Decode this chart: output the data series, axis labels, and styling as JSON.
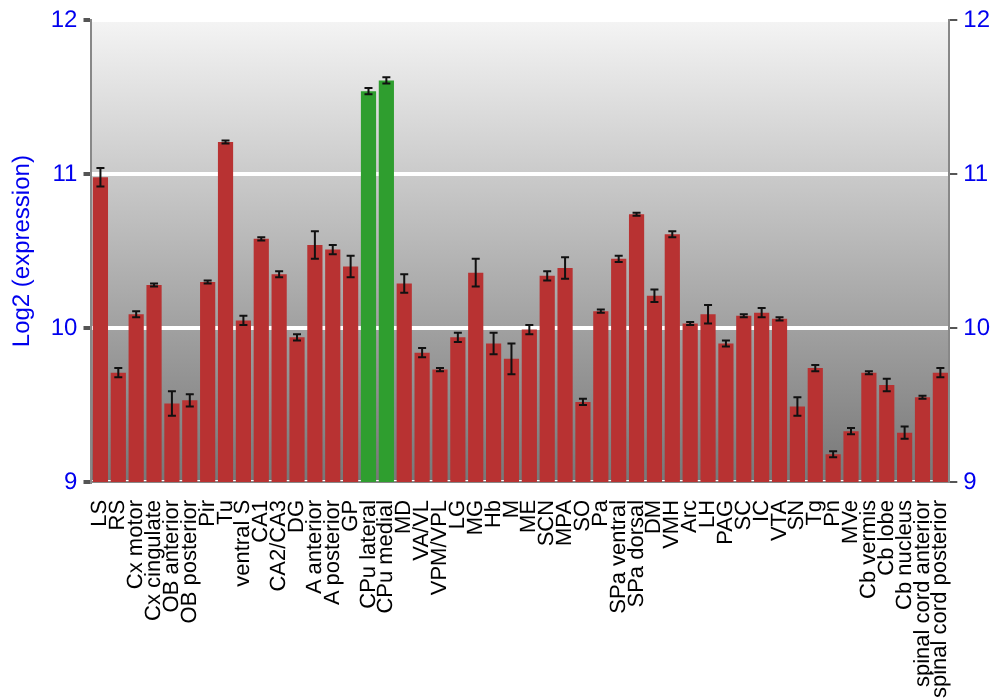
{
  "chart_data": {
    "type": "bar",
    "ylabel": "Log2 (expression)",
    "categories": [
      "LS",
      "RS",
      "Cx motor",
      "Cx cingulate",
      "OB anterior",
      "OB posterior",
      "Pir",
      "Tu",
      "ventral S",
      "CA1",
      "CA2/CA3",
      "DG",
      "A anterior",
      "A posterior",
      "GP",
      "CPu lateral",
      "CPu medial",
      "MD",
      "VA/VL",
      "VPM/VPL",
      "LG",
      "MG",
      "Hb",
      "M",
      "ME",
      "SCN",
      "MPA",
      "SO",
      "Pa",
      "SPa ventral",
      "SPa dorsal",
      "DM",
      "VMH",
      "Arc",
      "LH",
      "PAG",
      "SC",
      "IC",
      "VTA",
      "SN",
      "Tg",
      "Pn",
      "MVe",
      "Cb vermis",
      "Cb lobe",
      "Cb nucleus",
      "spinal cord anterior",
      "spinal cord posterior"
    ],
    "values": [
      10.98,
      9.71,
      10.09,
      10.28,
      9.51,
      9.53,
      10.3,
      11.21,
      10.05,
      10.58,
      10.35,
      9.94,
      10.54,
      10.51,
      10.4,
      11.54,
      11.61,
      10.29,
      9.84,
      9.73,
      9.94,
      10.36,
      9.9,
      9.8,
      9.99,
      10.34,
      10.39,
      9.52,
      10.11,
      10.45,
      10.74,
      10.21,
      10.61,
      10.03,
      10.09,
      9.9,
      10.08,
      10.1,
      10.06,
      9.49,
      9.74,
      9.18,
      9.33,
      9.71,
      9.63,
      9.32,
      9.55,
      9.71
    ],
    "errors": [
      0.06,
      0.03,
      0.02,
      0.01,
      0.08,
      0.04,
      0.01,
      0.01,
      0.03,
      0.01,
      0.02,
      0.02,
      0.09,
      0.03,
      0.07,
      0.02,
      0.02,
      0.06,
      0.03,
      0.01,
      0.03,
      0.09,
      0.07,
      0.1,
      0.03,
      0.03,
      0.07,
      0.02,
      0.01,
      0.02,
      0.01,
      0.04,
      0.02,
      0.01,
      0.06,
      0.02,
      0.01,
      0.03,
      0.01,
      0.06,
      0.02,
      0.02,
      0.02,
      0.01,
      0.04,
      0.04,
      0.01,
      0.03
    ],
    "colors": [
      "#b83232",
      "#b83232",
      "#b83232",
      "#b83232",
      "#b83232",
      "#b83232",
      "#b83232",
      "#b83232",
      "#b83232",
      "#b83232",
      "#b83232",
      "#b83232",
      "#b83232",
      "#b83232",
      "#b83232",
      "#2f9e2f",
      "#2f9e2f",
      "#b83232",
      "#b83232",
      "#b83232",
      "#b83232",
      "#b83232",
      "#b83232",
      "#b83232",
      "#b83232",
      "#b83232",
      "#b83232",
      "#b83232",
      "#b83232",
      "#b83232",
      "#b83232",
      "#b83232",
      "#b83232",
      "#b83232",
      "#b83232",
      "#b83232",
      "#b83232",
      "#b83232",
      "#b83232",
      "#b83232",
      "#b83232",
      "#b83232",
      "#b83232",
      "#b83232",
      "#b83232",
      "#b83232",
      "#b83232",
      "#b83232"
    ],
    "ylim": [
      9,
      12
    ],
    "yticks": [
      9,
      10,
      11,
      12
    ],
    "y2lim": [
      9,
      12
    ],
    "y2ticks": [
      9,
      10,
      11,
      12
    ],
    "grid": "y",
    "legend": false
  }
}
